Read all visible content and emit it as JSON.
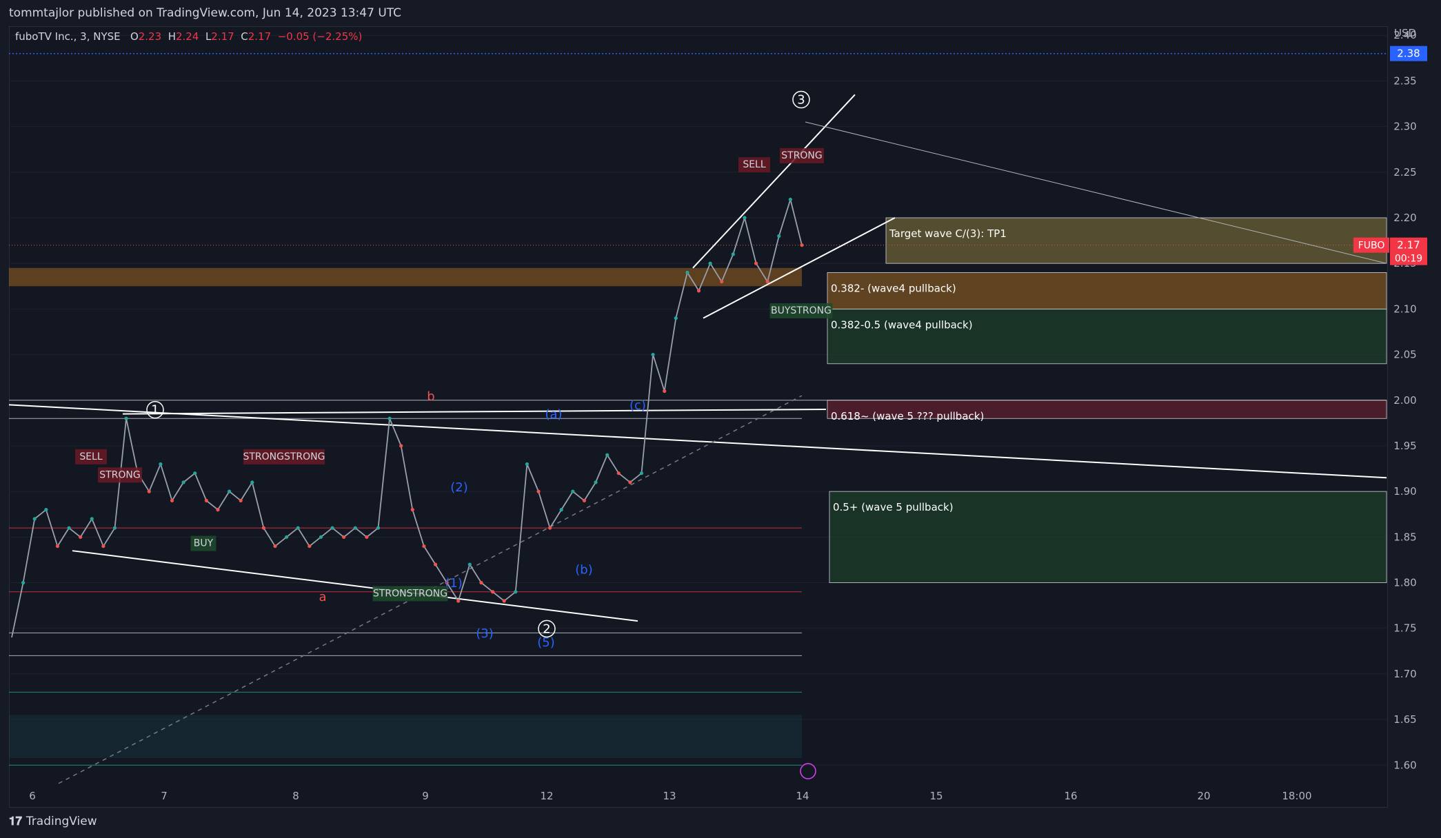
{
  "publish_line": "tommtajlor published on TradingView.com, Jun 14, 2023 13:47 UTC",
  "legend": {
    "symbol": "fuboTV Inc., 3, NYSE",
    "o_label": "O",
    "o": "2.23",
    "h_label": "H",
    "h": "2.24",
    "l_label": "L",
    "l": "2.17",
    "c_label": "C",
    "c": "2.17",
    "change": "−0.05 (−2.25%)"
  },
  "footer": {
    "brand": "TradingView"
  },
  "colors": {
    "up": "#26a69a",
    "down": "#ef5350",
    "wave": "#2962ff",
    "bg": "#131722",
    "ticker": "#f23645",
    "alert": "#2962ff"
  },
  "chart_data": {
    "type": "line",
    "currency": "USD",
    "ylim": [
      1.57,
      2.41
    ],
    "y_ticks": [
      1.6,
      1.65,
      1.7,
      1.75,
      1.8,
      1.85,
      1.9,
      1.95,
      2.0,
      2.05,
      2.1,
      2.15,
      2.2,
      2.25,
      2.3,
      2.35,
      2.4
    ],
    "x_ticks": [
      "6",
      "7",
      "8",
      "9",
      "12",
      "13",
      "14",
      "15",
      "16",
      "20",
      "18:00"
    ],
    "alert_price": "2.38",
    "current_price": {
      "ticker": "FUBO",
      "price": "2.17",
      "countdown": "00:19"
    },
    "series": [
      {
        "values": [
          [
            0.0,
            1.74
          ],
          [
            0.3,
            1.8
          ],
          [
            0.6,
            1.87
          ],
          [
            0.9,
            1.88
          ],
          [
            1.2,
            1.84
          ],
          [
            1.5,
            1.86
          ],
          [
            1.8,
            1.85
          ],
          [
            2.1,
            1.87
          ],
          [
            2.4,
            1.84
          ],
          [
            2.7,
            1.86
          ],
          [
            3.0,
            1.98
          ],
          [
            3.3,
            1.92
          ],
          [
            3.6,
            1.9
          ],
          [
            3.9,
            1.93
          ],
          [
            4.2,
            1.89
          ],
          [
            4.5,
            1.91
          ],
          [
            4.8,
            1.92
          ],
          [
            5.1,
            1.89
          ],
          [
            5.4,
            1.88
          ],
          [
            5.7,
            1.9
          ],
          [
            6.0,
            1.89
          ],
          [
            6.3,
            1.91
          ],
          [
            6.6,
            1.86
          ],
          [
            6.9,
            1.84
          ],
          [
            7.2,
            1.85
          ],
          [
            7.5,
            1.86
          ],
          [
            7.8,
            1.84
          ],
          [
            8.1,
            1.85
          ],
          [
            8.4,
            1.86
          ],
          [
            8.7,
            1.85
          ],
          [
            9.0,
            1.86
          ],
          [
            9.3,
            1.85
          ],
          [
            9.6,
            1.86
          ],
          [
            9.9,
            1.98
          ],
          [
            10.2,
            1.95
          ],
          [
            10.5,
            1.88
          ],
          [
            10.8,
            1.84
          ],
          [
            11.1,
            1.82
          ],
          [
            11.4,
            1.8
          ],
          [
            11.7,
            1.78
          ],
          [
            12.0,
            1.82
          ],
          [
            12.3,
            1.8
          ],
          [
            12.6,
            1.79
          ],
          [
            12.9,
            1.78
          ],
          [
            13.2,
            1.79
          ],
          [
            13.5,
            1.93
          ],
          [
            13.8,
            1.9
          ],
          [
            14.1,
            1.86
          ],
          [
            14.4,
            1.88
          ],
          [
            14.7,
            1.9
          ],
          [
            15.0,
            1.89
          ],
          [
            15.3,
            1.91
          ],
          [
            15.6,
            1.94
          ],
          [
            15.9,
            1.92
          ],
          [
            16.2,
            1.91
          ],
          [
            16.5,
            1.92
          ],
          [
            16.8,
            2.05
          ],
          [
            17.1,
            2.01
          ],
          [
            17.4,
            2.09
          ],
          [
            17.7,
            2.14
          ],
          [
            18.0,
            2.12
          ],
          [
            18.3,
            2.15
          ],
          [
            18.6,
            2.13
          ],
          [
            18.9,
            2.16
          ],
          [
            19.2,
            2.2
          ],
          [
            19.5,
            2.15
          ],
          [
            19.8,
            2.13
          ],
          [
            20.1,
            2.18
          ],
          [
            20.4,
            2.22
          ],
          [
            20.7,
            2.17
          ]
        ]
      }
    ],
    "boxes": [
      {
        "label": "Target wave C/(3): TP1",
        "from": 2.15,
        "to": 2.2,
        "color": "#8a7a3a"
      },
      {
        "label": "0.382- (wave4 pullback)",
        "from": 2.1,
        "to": 2.14,
        "color": "#a06a20"
      },
      {
        "label": "0.382-0.5 (wave4 pullback)",
        "from": 2.04,
        "to": 2.1,
        "color": "#1f4a2c"
      },
      {
        "label": "0.618~ (wave 5 ??? pullback)",
        "from": 1.98,
        "to": 2.0,
        "color": "#7a2030"
      },
      {
        "label": "0.5+ (wave 5 pullback)",
        "from": 1.8,
        "to": 1.9,
        "color": "#1f4a2c"
      }
    ],
    "wave_labels": [
      "1",
      "2",
      "3",
      "a",
      "b",
      "(a)",
      "(c)",
      "(1)",
      "(2)",
      "(3)",
      "(5)",
      "(b)"
    ],
    "signal_labels": [
      "SELL",
      "STRONG",
      "BUY",
      "BUYSTRONG",
      "STRONGSTRONG",
      "STRONSTRONG"
    ]
  }
}
